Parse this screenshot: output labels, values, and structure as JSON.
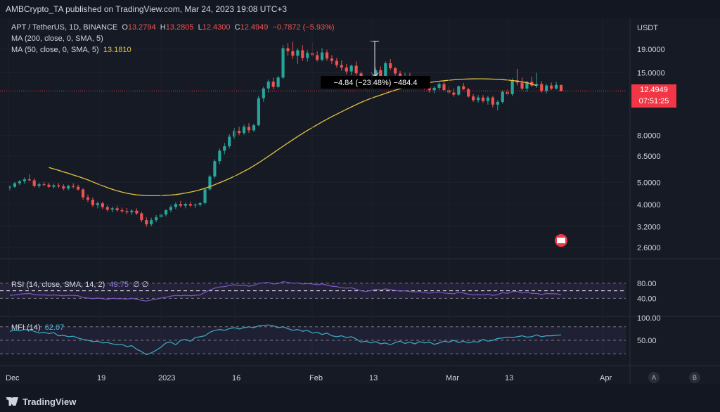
{
  "header": {
    "publisher": "AMBCrypto_TA published on TradingView.com, Mar 24, 2023 19:08 UTC+3"
  },
  "legend": {
    "symbol": "APT / TetherUS, 1D, BINANCE",
    "o_label": "O",
    "o": "13.2794",
    "h_label": "H",
    "h": "13.2805",
    "l_label": "L",
    "l": "12.4300",
    "c_label": "C",
    "c": "12.4949",
    "change": "−0.7872 (−5.93%)",
    "ma200": "MA (200, close, 0, SMA, 5)",
    "ma50": "MA (50, close, 0, SMA, 5)",
    "ma50_value": "13.1810"
  },
  "rsi_legend": {
    "label": "RSI (14, close, SMA, 14, 2)",
    "value": "49.75",
    "extra": "∅ ∅"
  },
  "mfi_legend": {
    "label": "MFI (14)",
    "value": "62.07"
  },
  "price_scale": {
    "unit": "USDT",
    "current_price": "12.4949",
    "countdown": "07:51:25"
  },
  "measure_label": "−4.84 (−23.48%) −484.4",
  "indicator_buttons": [
    "A",
    "B"
  ],
  "footer": {
    "brand": "TradingView"
  },
  "chart_data": {
    "type": "candlestick",
    "symbol": "APT / TetherUS",
    "timeframe": "1D",
    "y_scale": "log",
    "y_ticks": [
      19.0,
      15.0,
      8.0,
      6.5,
      5.0,
      4.0,
      3.2,
      2.6
    ],
    "y_tick_labels": [
      "19.0000",
      "15.0000",
      "8.0000",
      "6.5000",
      "5.0000",
      "4.0000",
      "3.2000",
      "2.6000"
    ],
    "x_tick_labels": [
      "Dec",
      "19",
      "2023",
      "16",
      "Feb",
      "13",
      "Mar",
      "13",
      "Apr"
    ],
    "last_close": 12.4949,
    "ohlc": [
      [
        4.75,
        4.85,
        4.62,
        4.78
      ],
      [
        4.78,
        5.02,
        4.72,
        4.95
      ],
      [
        4.95,
        5.12,
        4.86,
        5.05
      ],
      [
        5.05,
        5.25,
        4.92,
        5.15
      ],
      [
        5.15,
        5.42,
        5.05,
        5.1
      ],
      [
        5.1,
        5.22,
        4.75,
        4.82
      ],
      [
        4.82,
        4.98,
        4.72,
        4.9
      ],
      [
        4.9,
        5.02,
        4.8,
        4.88
      ],
      [
        4.88,
        4.98,
        4.72,
        4.78
      ],
      [
        4.78,
        4.92,
        4.7,
        4.85
      ],
      [
        4.85,
        4.96,
        4.72,
        4.8
      ],
      [
        4.8,
        4.9,
        4.62,
        4.7
      ],
      [
        4.7,
        4.88,
        4.62,
        4.82
      ],
      [
        4.82,
        4.95,
        4.7,
        4.78
      ],
      [
        4.78,
        4.88,
        4.6,
        4.65
      ],
      [
        4.65,
        4.72,
        4.2,
        4.3
      ],
      [
        4.3,
        4.42,
        4.1,
        4.2
      ],
      [
        4.2,
        4.3,
        3.9,
        3.98
      ],
      [
        3.98,
        4.12,
        3.85,
        4.05
      ],
      [
        4.05,
        4.12,
        3.82,
        3.9
      ],
      [
        3.9,
        3.98,
        3.72,
        3.8
      ],
      [
        3.8,
        3.92,
        3.7,
        3.85
      ],
      [
        3.85,
        3.95,
        3.72,
        3.78
      ],
      [
        3.78,
        3.88,
        3.68,
        3.74
      ],
      [
        3.74,
        3.86,
        3.62,
        3.7
      ],
      [
        3.7,
        3.82,
        3.6,
        3.76
      ],
      [
        3.76,
        3.85,
        3.6,
        3.66
      ],
      [
        3.66,
        3.72,
        3.35,
        3.42
      ],
      [
        3.42,
        3.52,
        3.2,
        3.28
      ],
      [
        3.28,
        3.5,
        3.22,
        3.42
      ],
      [
        3.42,
        3.6,
        3.35,
        3.52
      ],
      [
        3.52,
        3.68,
        3.45,
        3.62
      ],
      [
        3.62,
        3.82,
        3.55,
        3.78
      ],
      [
        3.78,
        3.98,
        3.7,
        3.9
      ],
      [
        3.9,
        4.1,
        3.82,
        4.02
      ],
      [
        4.02,
        4.15,
        3.88,
        3.95
      ],
      [
        3.95,
        4.08,
        3.85,
        4.02
      ],
      [
        4.02,
        4.12,
        3.9,
        3.96
      ],
      [
        3.96,
        4.05,
        3.86,
        3.99
      ],
      [
        3.99,
        4.1,
        3.92,
        4.06
      ],
      [
        4.06,
        4.72,
        4.0,
        4.66
      ],
      [
        4.66,
        5.38,
        4.6,
        5.3
      ],
      [
        5.3,
        6.3,
        5.2,
        6.18
      ],
      [
        6.18,
        7.02,
        6.0,
        6.86
      ],
      [
        6.86,
        7.42,
        6.62,
        7.18
      ],
      [
        7.18,
        8.1,
        7.02,
        7.9
      ],
      [
        7.9,
        8.62,
        7.72,
        8.38
      ],
      [
        8.38,
        8.72,
        8.02,
        8.2
      ],
      [
        8.2,
        8.92,
        8.05,
        8.72
      ],
      [
        8.72,
        9.05,
        8.2,
        8.42
      ],
      [
        8.42,
        9.0,
        8.3,
        8.86
      ],
      [
        8.86,
        11.92,
        8.78,
        11.62
      ],
      [
        11.62,
        13.02,
        11.22,
        12.82
      ],
      [
        12.82,
        14.02,
        12.3,
        13.72
      ],
      [
        13.72,
        14.3,
        12.7,
        13.02
      ],
      [
        13.02,
        14.55,
        12.9,
        14.3
      ],
      [
        14.3,
        19.8,
        14.1,
        19.2
      ],
      [
        19.2,
        20.2,
        17.8,
        18.62
      ],
      [
        18.62,
        20.5,
        17.2,
        17.8
      ],
      [
        17.8,
        19.2,
        16.4,
        18.8
      ],
      [
        18.8,
        19.8,
        16.9,
        17.4
      ],
      [
        17.4,
        18.8,
        16.8,
        18.3
      ],
      [
        18.3,
        20.3,
        17.6,
        17.9
      ],
      [
        17.9,
        18.6,
        16.8,
        17.1
      ],
      [
        17.1,
        19.2,
        16.8,
        18.4
      ],
      [
        18.4,
        18.9,
        16.92,
        17.3
      ],
      [
        17.3,
        17.9,
        16.4,
        16.9
      ],
      [
        16.9,
        17.4,
        15.8,
        16.2
      ],
      [
        16.2,
        17.0,
        15.3,
        15.8
      ],
      [
        15.8,
        16.4,
        14.8,
        15.2
      ],
      [
        15.2,
        16.3,
        14.62,
        16.1
      ],
      [
        16.1,
        16.8,
        14.6,
        14.92
      ],
      [
        14.92,
        15.2,
        13.3,
        13.7
      ],
      [
        13.7,
        14.0,
        12.7,
        13.1
      ],
      [
        13.1,
        14.3,
        12.9,
        14.2
      ],
      [
        14.2,
        15.8,
        13.6,
        15.4
      ],
      [
        15.4,
        16.0,
        13.9,
        14.3
      ],
      [
        14.3,
        16.8,
        14.0,
        16.5
      ],
      [
        16.5,
        17.2,
        15.4,
        15.7
      ],
      [
        15.7,
        15.9,
        14.6,
        14.9
      ],
      [
        14.9,
        15.3,
        13.8,
        14.2
      ],
      [
        14.2,
        15.0,
        13.6,
        14.5
      ],
      [
        14.5,
        15.0,
        13.7,
        13.9
      ],
      [
        13.9,
        14.3,
        13.2,
        13.5
      ],
      [
        13.5,
        14.1,
        13.0,
        13.8
      ],
      [
        13.8,
        13.9,
        12.7,
        12.95
      ],
      [
        12.95,
        13.4,
        12.3,
        12.6
      ],
      [
        12.6,
        13.1,
        12.2,
        12.9
      ],
      [
        12.9,
        13.6,
        12.6,
        13.4
      ],
      [
        13.4,
        13.8,
        12.5,
        12.62
      ],
      [
        12.62,
        13.1,
        12.1,
        12.3
      ],
      [
        12.3,
        12.8,
        11.8,
        12.05
      ],
      [
        12.05,
        13.2,
        11.9,
        13.1
      ],
      [
        13.1,
        13.55,
        12.6,
        12.72
      ],
      [
        12.72,
        12.9,
        11.7,
        11.82
      ],
      [
        11.82,
        12.1,
        11.2,
        11.4
      ],
      [
        11.4,
        12.0,
        11.1,
        11.7
      ],
      [
        11.7,
        12.0,
        11.1,
        11.3
      ],
      [
        11.3,
        11.9,
        10.9,
        11.7
      ],
      [
        11.7,
        11.9,
        10.6,
        10.9
      ],
      [
        10.9,
        11.4,
        10.3,
        11.2
      ],
      [
        11.2,
        12.6,
        11.0,
        12.4
      ],
      [
        12.4,
        12.8,
        11.9,
        12.1
      ],
      [
        12.1,
        14.2,
        11.9,
        13.9
      ],
      [
        13.9,
        15.6,
        13.2,
        13.6
      ],
      [
        13.6,
        14.3,
        12.6,
        12.8
      ],
      [
        12.8,
        13.8,
        12.4,
        13.7
      ],
      [
        13.7,
        14.4,
        13.0,
        13.2
      ],
      [
        13.2,
        15.0,
        12.9,
        13.4
      ],
      [
        13.4,
        13.8,
        12.3,
        12.5
      ],
      [
        12.5,
        13.4,
        12.2,
        13.2
      ],
      [
        13.2,
        13.6,
        12.6,
        12.8
      ],
      [
        12.8,
        13.7,
        12.7,
        13.28
      ],
      [
        13.28,
        13.28,
        12.43,
        12.49
      ]
    ],
    "ma50": {
      "start_index": 8,
      "values": [
        5.8,
        5.72,
        5.64,
        5.55,
        5.47,
        5.38,
        5.3,
        5.21,
        5.12,
        5.02,
        4.92,
        4.83,
        4.74,
        4.66,
        4.59,
        4.53,
        4.48,
        4.44,
        4.41,
        4.39,
        4.38,
        4.37,
        4.37,
        4.38,
        4.39,
        4.4,
        4.42,
        4.45,
        4.49,
        4.53,
        4.58,
        4.64,
        4.71,
        4.79,
        4.88,
        4.98,
        5.08,
        5.19,
        5.31,
        5.44,
        5.58,
        5.73,
        5.9,
        6.08,
        6.28,
        6.49,
        6.71,
        6.94,
        7.18,
        7.42,
        7.66,
        7.91,
        8.16,
        8.41,
        8.66,
        8.91,
        9.16,
        9.41,
        9.66,
        9.9,
        10.15,
        10.4,
        10.65,
        10.9,
        11.15,
        11.38,
        11.6,
        11.8,
        12.0,
        12.2,
        12.4,
        12.6,
        12.78,
        12.95,
        13.1,
        13.25,
        13.38,
        13.5,
        13.6,
        13.7,
        13.78,
        13.85,
        13.92,
        13.98,
        14.03,
        14.07,
        14.1,
        14.11,
        14.12,
        14.12,
        14.1,
        14.08,
        14.04,
        14.0,
        13.95,
        13.88,
        13.8,
        13.7,
        13.58,
        13.4,
        13.18
      ]
    },
    "rsi": {
      "levels": [
        80,
        40
      ],
      "last": 49.75,
      "values": [
        48,
        49,
        51,
        52,
        53,
        50,
        49,
        49,
        48,
        49,
        48,
        47,
        48,
        48,
        47,
        42,
        41,
        39,
        41,
        39,
        38,
        40,
        39,
        39,
        38,
        40,
        38,
        35,
        33,
        36,
        38,
        41,
        43,
        46,
        48,
        47,
        48,
        47,
        48,
        49,
        56,
        62,
        67,
        70,
        71,
        74,
        76,
        74,
        75,
        72,
        74,
        80,
        81,
        82,
        78,
        79,
        84,
        82,
        80,
        81,
        78,
        79,
        78,
        76,
        78,
        75,
        72,
        71,
        68,
        67,
        68,
        64,
        60,
        58,
        61,
        64,
        62,
        65,
        63,
        61,
        59,
        60,
        58,
        57,
        58,
        55,
        54,
        55,
        57,
        54,
        53,
        52,
        56,
        54,
        51,
        49,
        50,
        49,
        51,
        48,
        50,
        55,
        53,
        58,
        58,
        54,
        56,
        53,
        53,
        50,
        53,
        52,
        52,
        50
      ]
    },
    "mfi": {
      "levels": [
        100,
        50
      ],
      "last": 62.07,
      "values": [
        70,
        72,
        71,
        74,
        73,
        70,
        66,
        68,
        65,
        67,
        60,
        61,
        58,
        59,
        55,
        52,
        50,
        47,
        48,
        44,
        45,
        42,
        40,
        41,
        36,
        38,
        30,
        25,
        18,
        22,
        28,
        35,
        44,
        46,
        40,
        50,
        52,
        48,
        56,
        58,
        60,
        68,
        72,
        74,
        72,
        76,
        78,
        75,
        78,
        80,
        78,
        82,
        83,
        84,
        82,
        78,
        80,
        76,
        72,
        74,
        70,
        72,
        66,
        68,
        63,
        66,
        60,
        58,
        60,
        56,
        58,
        53,
        46,
        48,
        44,
        47,
        42,
        44,
        40,
        45,
        48,
        43,
        46,
        42,
        47,
        44,
        46,
        41,
        44,
        48,
        46,
        50,
        45,
        48,
        44,
        47,
        46,
        52,
        48,
        50,
        54,
        55,
        57,
        56,
        58,
        60,
        57,
        58,
        62,
        58,
        60,
        60,
        61,
        62
      ]
    }
  }
}
